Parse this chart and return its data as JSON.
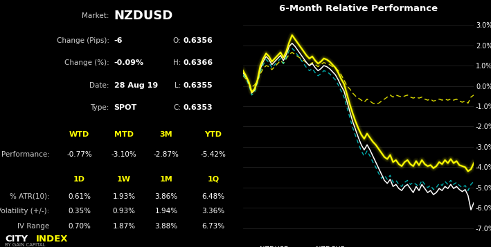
{
  "title": "6-Month Relative Performance",
  "background_color": "#000000",
  "grid_color": "#444444",
  "text_color": "#ffffff",
  "yellow_color": "#ffff00",
  "cyan_color": "#00cccc",
  "label_color": "#aaaaaa",
  "ylim": [
    -7.2,
    3.5
  ],
  "yticks": [
    -7.0,
    -6.0,
    -5.0,
    -4.0,
    -3.0,
    -2.0,
    -1.0,
    0.0,
    1.0,
    2.0,
    3.0
  ],
  "market": "NZDUSD",
  "change_pips": "-6",
  "change_pct": "-0.09%",
  "date": "28 Aug 19",
  "type_val": "SPOT",
  "O": "0.6356",
  "H": "0.6366",
  "L": "0.6355",
  "C": "0.6353",
  "perf_headers": [
    "WTD",
    "MTD",
    "3M",
    "YTD"
  ],
  "perf_values": [
    "-0.77%",
    "-3.10%",
    "-2.87%",
    "-5.42%"
  ],
  "vol_headers": [
    "1D",
    "1W",
    "1M",
    "1Q"
  ],
  "atr_values": [
    "0.61%",
    "1.93%",
    "3.86%",
    "6.48%"
  ],
  "iv_values": [
    "0.35%",
    "0.93%",
    "1.94%",
    "3.36%"
  ],
  "ivr_values": [
    "0.70%",
    "1.87%",
    "3.88%",
    "6.73%"
  ],
  "nzdusd": [
    0.75,
    0.5,
    0.2,
    -0.3,
    -0.15,
    0.3,
    1.0,
    1.35,
    1.6,
    1.45,
    1.2,
    1.35,
    1.5,
    1.65,
    1.4,
    1.7,
    2.15,
    2.5,
    2.3,
    2.1,
    1.9,
    1.7,
    1.5,
    1.35,
    1.45,
    1.25,
    1.1,
    1.2,
    1.35,
    1.3,
    1.2,
    1.05,
    0.9,
    0.65,
    0.35,
    0.1,
    -0.4,
    -0.9,
    -1.35,
    -1.75,
    -2.1,
    -2.4,
    -2.6,
    -2.35,
    -2.55,
    -2.75,
    -2.9,
    -3.1,
    -3.3,
    -3.5,
    -3.6,
    -3.4,
    -3.75,
    -3.65,
    -3.85,
    -3.95,
    -3.75,
    -3.65,
    -3.85,
    -3.95,
    -3.7,
    -3.9,
    -3.65,
    -3.85,
    -3.95,
    -3.9,
    -4.05,
    -3.95,
    -3.75,
    -3.85,
    -3.65,
    -3.8,
    -3.6,
    -3.8,
    -3.7,
    -3.9,
    -3.95,
    -4.0,
    -4.2,
    -4.1,
    -3.8
  ],
  "nzdjpy": [
    0.65,
    0.45,
    0.15,
    -0.35,
    -0.2,
    0.25,
    0.85,
    1.2,
    1.45,
    1.3,
    1.05,
    1.2,
    1.35,
    1.5,
    1.25,
    1.55,
    1.95,
    2.1,
    1.95,
    1.75,
    1.55,
    1.35,
    1.15,
    1.0,
    1.1,
    0.9,
    0.75,
    0.85,
    1.0,
    0.95,
    0.85,
    0.7,
    0.55,
    0.3,
    0.0,
    -0.25,
    -0.75,
    -1.25,
    -1.75,
    -2.15,
    -2.55,
    -2.9,
    -3.15,
    -2.9,
    -3.15,
    -3.45,
    -3.75,
    -4.05,
    -4.35,
    -4.65,
    -4.8,
    -4.6,
    -4.95,
    -4.85,
    -5.05,
    -5.15,
    -4.95,
    -4.85,
    -5.05,
    -5.25,
    -4.95,
    -5.15,
    -4.85,
    -5.05,
    -5.25,
    -5.15,
    -5.35,
    -5.25,
    -5.05,
    -5.15,
    -4.95,
    -5.05,
    -4.85,
    -5.05,
    -4.95,
    -5.1,
    -5.2,
    -5.1,
    -5.4,
    -6.1,
    -5.75
  ],
  "nzdchf": [
    0.55,
    0.35,
    0.05,
    -0.45,
    -0.3,
    0.15,
    0.7,
    1.05,
    1.3,
    1.15,
    0.9,
    1.05,
    1.2,
    1.35,
    1.1,
    1.4,
    1.75,
    1.85,
    1.7,
    1.5,
    1.3,
    1.1,
    0.9,
    0.75,
    0.85,
    0.65,
    0.5,
    0.6,
    0.75,
    0.7,
    0.6,
    0.45,
    0.3,
    0.05,
    -0.25,
    -0.55,
    -1.05,
    -1.55,
    -2.05,
    -2.45,
    -2.85,
    -3.2,
    -3.45,
    -3.2,
    -3.45,
    -3.75,
    -4.0,
    -4.3,
    -4.55,
    -4.4,
    -4.6,
    -4.4,
    -4.75,
    -4.65,
    -4.85,
    -4.95,
    -4.75,
    -4.65,
    -4.85,
    -4.75,
    -4.85,
    -4.95,
    -4.65,
    -4.85,
    -5.0,
    -4.9,
    -5.1,
    -5.0,
    -4.8,
    -4.9,
    -4.7,
    -4.85,
    -4.65,
    -4.85,
    -4.75,
    -4.9,
    -5.0,
    -4.9,
    -5.15,
    -4.85,
    -4.7
  ],
  "nzdaud": [
    0.5,
    0.35,
    0.1,
    -0.05,
    0.05,
    0.25,
    0.6,
    0.85,
    1.0,
    0.95,
    0.8,
    0.95,
    1.1,
    1.25,
    1.1,
    1.35,
    1.55,
    1.65,
    1.55,
    1.45,
    1.35,
    1.25,
    1.15,
    1.05,
    1.15,
    1.05,
    0.95,
    1.05,
    1.15,
    1.1,
    1.05,
    0.95,
    0.9,
    0.75,
    0.55,
    0.3,
    0.0,
    -0.15,
    -0.35,
    -0.5,
    -0.6,
    -0.7,
    -0.8,
    -0.65,
    -0.75,
    -0.85,
    -0.9,
    -0.85,
    -0.75,
    -0.65,
    -0.55,
    -0.45,
    -0.55,
    -0.45,
    -0.5,
    -0.55,
    -0.5,
    -0.45,
    -0.55,
    -0.6,
    -0.55,
    -0.6,
    -0.55,
    -0.65,
    -0.7,
    -0.65,
    -0.75,
    -0.7,
    -0.65,
    -0.7,
    -0.65,
    -0.7,
    -0.65,
    -0.7,
    -0.65,
    -0.75,
    -0.8,
    -0.75,
    -0.85,
    -0.55,
    -0.45
  ]
}
